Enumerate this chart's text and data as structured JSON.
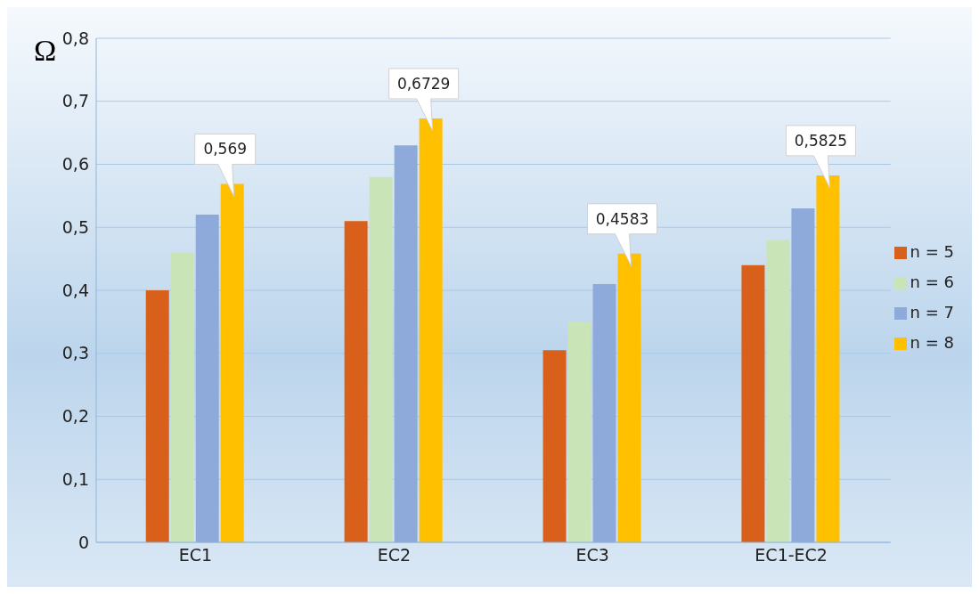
{
  "chart_data": {
    "type": "bar",
    "ylabel": "Ω",
    "categories": [
      "EC1",
      "EC2",
      "EC3",
      "EC1-EC2"
    ],
    "series": [
      {
        "name": "n = 5",
        "color": "#d9601a",
        "values": [
          0.4,
          0.51,
          0.305,
          0.44
        ]
      },
      {
        "name": "n = 6",
        "color": "#c9e5b8",
        "values": [
          0.46,
          0.58,
          0.35,
          0.48
        ]
      },
      {
        "name": "n = 7",
        "color": "#8eaadb",
        "values": [
          0.52,
          0.63,
          0.41,
          0.53
        ]
      },
      {
        "name": "n = 8",
        "color": "#ffc000",
        "values": [
          0.569,
          0.6729,
          0.4583,
          0.5825
        ],
        "value_labels": [
          "0,569",
          "0,6729",
          "0,4583",
          "0,5825"
        ]
      }
    ],
    "ylim": [
      0,
      0.8
    ],
    "yticks": [
      {
        "value": 0,
        "label": "0"
      },
      {
        "value": 0.1,
        "label": "0,1"
      },
      {
        "value": 0.2,
        "label": "0,2"
      },
      {
        "value": 0.3,
        "label": "0,3"
      },
      {
        "value": 0.4,
        "label": "0,4"
      },
      {
        "value": 0.5,
        "label": "0,5"
      },
      {
        "value": 0.6,
        "label": "0,6"
      },
      {
        "value": 0.7,
        "label": "0,7"
      },
      {
        "value": 0.8,
        "label": "0,8"
      }
    ],
    "grid": "y",
    "legend": "right"
  }
}
